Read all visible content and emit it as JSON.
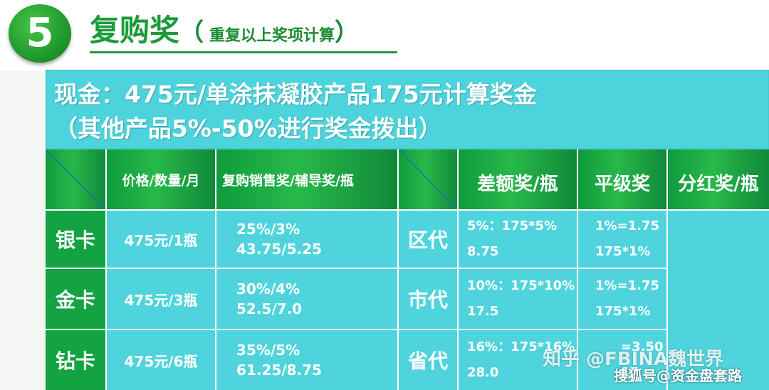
{
  "header": {
    "number": "5",
    "title": "复购奖",
    "paren_open": "（",
    "subtitle": "重复以上奖项计算",
    "paren_close": "）"
  },
  "banner": {
    "line1": "现金：475元/单涂抹凝胶产品175元计算奖金",
    "line2": "（其他产品5%-50%进行奖金拨出）"
  },
  "table": {
    "headers": {
      "price_qty": "价格/数量/月",
      "repurchase": "复购销售奖/辅导奖/瓶",
      "diff": "差额奖/瓶",
      "peer": "平级奖",
      "dividend": "分红奖/瓶"
    },
    "rows": [
      {
        "card": "银卡",
        "price": "475元/1瓶",
        "bonus_line1": "25%/3%",
        "bonus_line2": "43.75/5.25",
        "agent": "区代",
        "diff_line1": "5%：175*5%",
        "diff_line2": "8.75",
        "peer_line1": "1%=1.75",
        "peer_line2": "175*1%"
      },
      {
        "card": "金卡",
        "price": "475元/3瓶",
        "bonus_line1": "30%/4%",
        "bonus_line2": "52.5/7.0",
        "agent": "市代",
        "diff_line1": "10%：175*10%",
        "diff_line2": "17.5",
        "peer_line1": "1%=1.75",
        "peer_line2": "175*1%"
      },
      {
        "card": "钻卡",
        "price": "475元/6瓶",
        "bonus_line1": "35%/5%",
        "bonus_line2": "61.25/8.75",
        "agent": "省代",
        "diff_line1": "16%：175*16%",
        "diff_line2": "28.0",
        "peer_line1": "=3.50",
        "peer_line2": "17"
      }
    ]
  },
  "watermarks": {
    "zhihu": "知乎 @FBINA魏世界",
    "sohu": "搜狐号@资金盘套路"
  },
  "colors": {
    "header_green": "#1b9b3a",
    "teal": "#4dd3dc",
    "row_green": "#14a343"
  }
}
